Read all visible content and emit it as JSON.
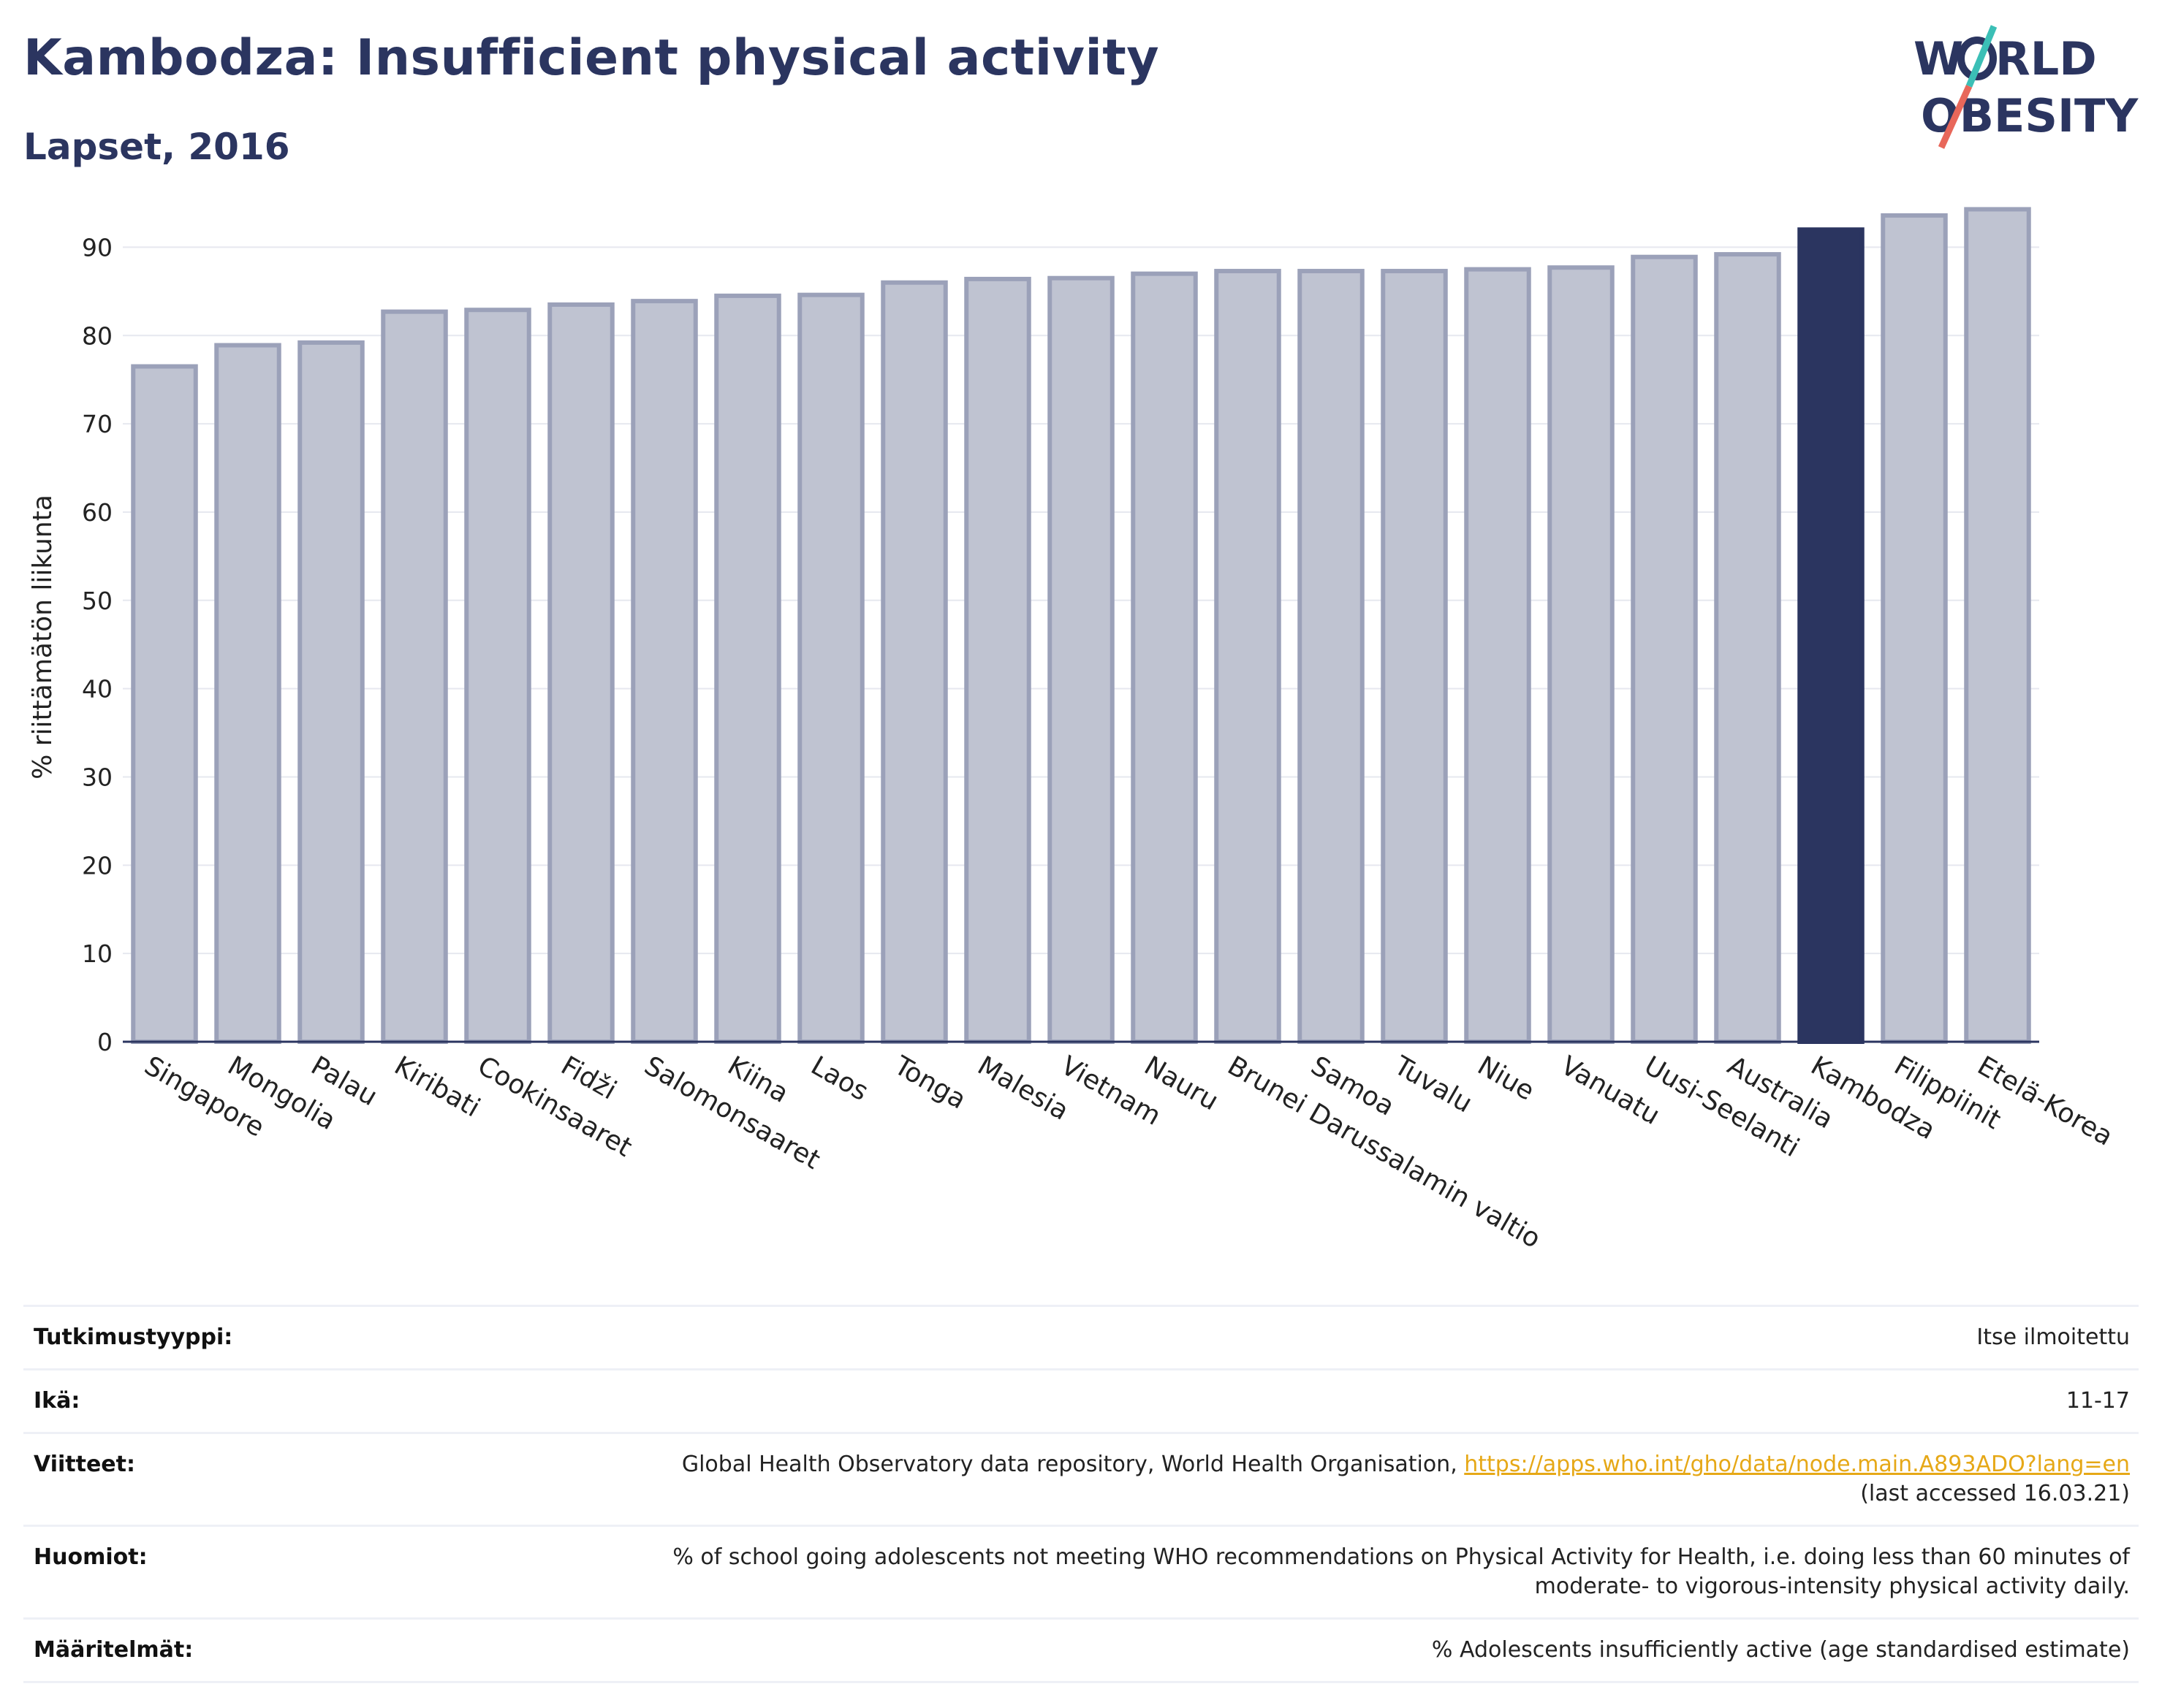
{
  "header": {
    "title": "Kambodza: Insufficient physical activity",
    "subtitle": "Lapset, 2016"
  },
  "logo": {
    "line1": "W  RLD",
    "line2": "OBESITY",
    "colors": {
      "text": "#2b3560",
      "slash1": "#3bbfb6",
      "slash2": "#e8675a"
    }
  },
  "colors": {
    "bar": "#bfc3d1",
    "bar_stroke": "#9ba1b9",
    "highlight": "#2b3560",
    "grid": "#e6e8ef",
    "axis": "#2b3560"
  },
  "chart_data": {
    "type": "bar",
    "title": "Kambodza: Insufficient physical activity",
    "subtitle": "Lapset, 2016",
    "ylabel": "% riittämätön liikunta",
    "xlabel": "",
    "ylim": [
      0,
      95
    ],
    "yticks": [
      0,
      10,
      20,
      30,
      40,
      50,
      60,
      70,
      80,
      90
    ],
    "grid": true,
    "highlight": "Kambodza",
    "categories": [
      "Singapore",
      "Mongolia",
      "Palau",
      "Kiribati",
      "Cookinsaaret",
      "Fidži",
      "Salomonsaaret",
      "Kiina",
      "Laos",
      "Tonga",
      "Malesia",
      "Vietnam",
      "Nauru",
      "Brunei Darussalamin valtio",
      "Samoa",
      "Tuvalu",
      "Niue",
      "Vanuatu",
      "Uusi-Seelanti",
      "Australia",
      "Kambodza",
      "Filippiinit",
      "Etelä-Korea"
    ],
    "values": [
      76.5,
      78.9,
      79.2,
      82.7,
      82.9,
      83.5,
      83.9,
      84.5,
      84.6,
      86.0,
      86.4,
      86.5,
      87.0,
      87.3,
      87.3,
      87.3,
      87.5,
      87.7,
      88.9,
      89.2,
      92.0,
      93.6,
      94.3
    ]
  },
  "info": {
    "rows": [
      {
        "key": "Tutkimustyyppi:",
        "value": "Itse ilmoitettu"
      },
      {
        "key": "Ikä:",
        "value": "11-17"
      },
      {
        "key": "Viitteet:",
        "value": "Global Health Observatory data repository, World Health Organisation, ",
        "link": "https://apps.who.int/gho/data/node.main.A893ADO?lang=en",
        "extra": "(last accessed 16.03.21)"
      },
      {
        "key": "Huomiot:",
        "value": "% of school going adolescents not meeting WHO recommendations on Physical Activity for Health, i.e. doing less than 60 minutes of moderate- to vigorous-intensity physical activity daily."
      },
      {
        "key": "Määritelmät:",
        "value": "% Adolescents insufficiently active (age standardised estimate)"
      }
    ]
  }
}
